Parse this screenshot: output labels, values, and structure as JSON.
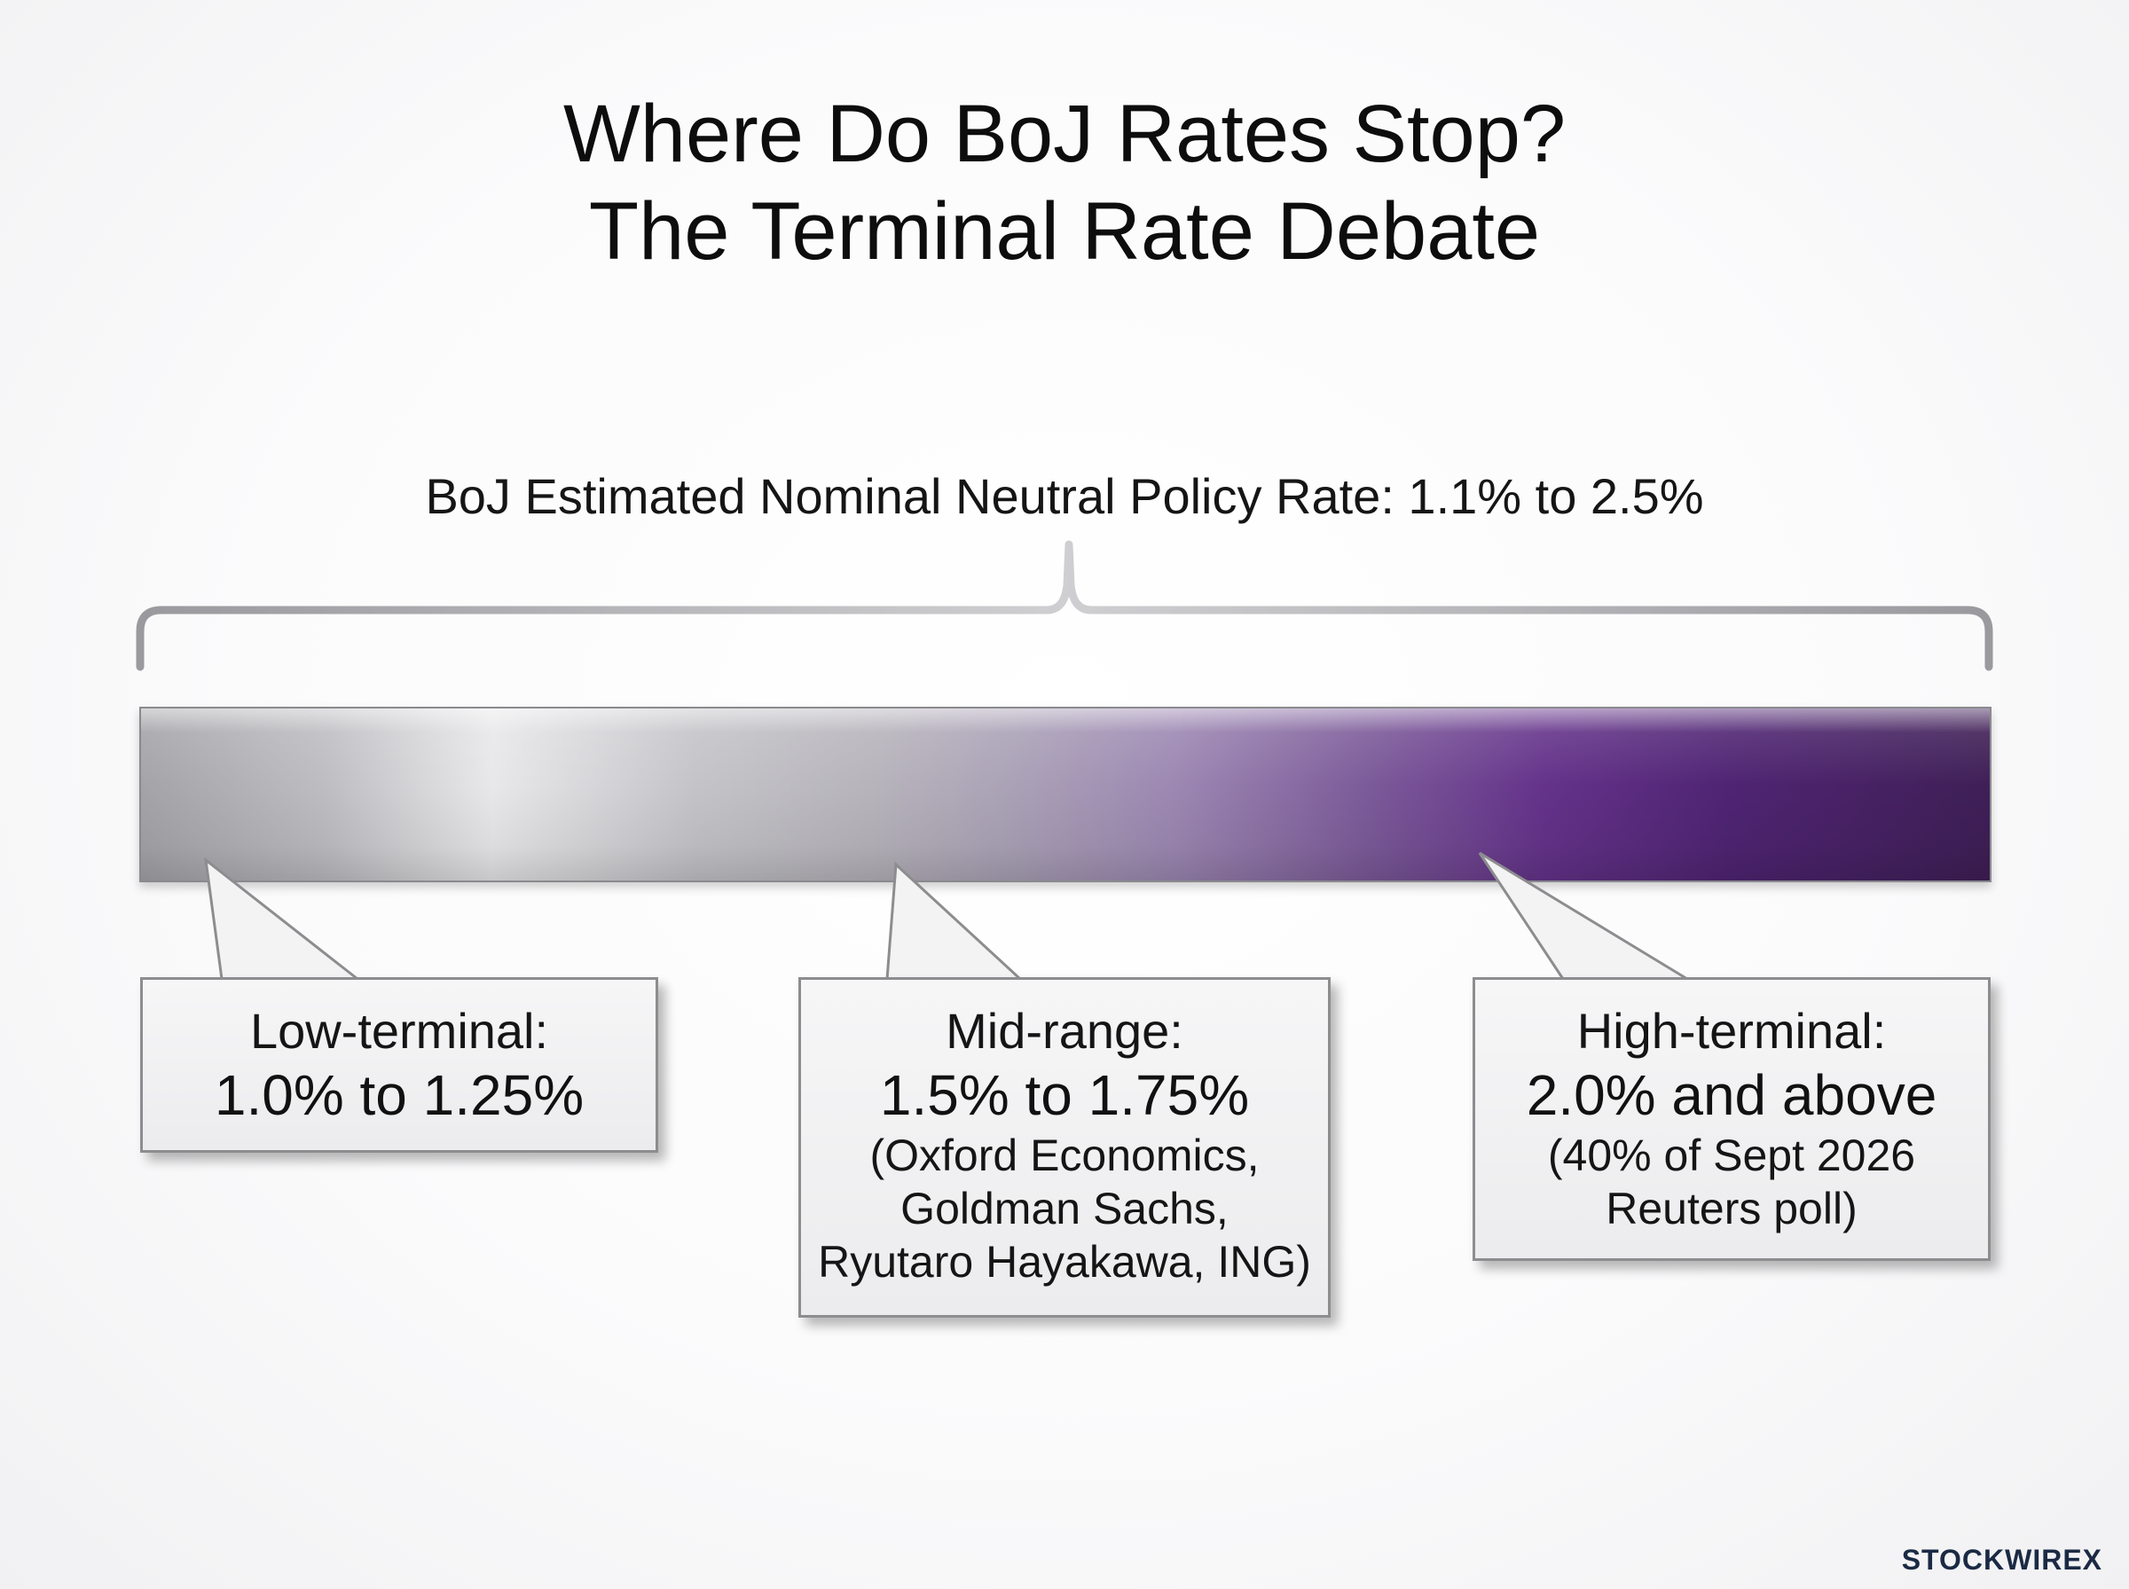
{
  "title": {
    "line1": "Where Do BoJ Rates Stop?",
    "line2": "The Terminal Rate Debate"
  },
  "neutral_range": {
    "label": "BoJ Estimated Nominal Neutral Policy Rate: 1.1% to 2.5%"
  },
  "scale_bar": {
    "gradient_colors": [
      "#a4a4a8",
      "#e8e8ea",
      "#9c87b2",
      "#64328a",
      "#3f1f56"
    ]
  },
  "callouts": {
    "low": {
      "heading": "Low-terminal:",
      "value": "1.0% to 1.25%"
    },
    "mid": {
      "heading": "Mid-range:",
      "value": "1.5% to 1.75%",
      "note_line1": "(Oxford Economics,",
      "note_line2": "Goldman Sachs,",
      "note_line3": "Ryutaro Hayakawa, ING)"
    },
    "high": {
      "heading": "High-terminal:",
      "value": "2.0% and above",
      "note_line1": "(40% of Sept 2026",
      "note_line2": "Reuters poll)"
    }
  },
  "logo": {
    "text": "STOCKWIRE",
    "mark": "X"
  }
}
